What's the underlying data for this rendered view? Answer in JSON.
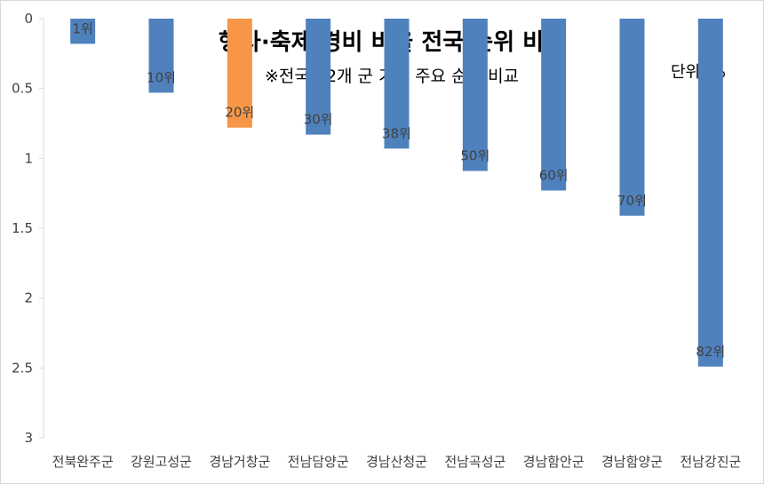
{
  "chart_data": {
    "type": "bar",
    "title": "행사·축제 경비 비율 전국 순위 비교",
    "subtitle": "※전국 82개 군 기준 주요 순위 비교",
    "unit_label": "단위: %",
    "categories": [
      "전북완주군",
      "강원고성군",
      "경남거창군",
      "전남담양군",
      "경남산청군",
      "전남곡성군",
      "경남함안군",
      "경남함양군",
      "전남강진군"
    ],
    "values": [
      0.18,
      0.53,
      0.78,
      0.83,
      0.93,
      1.09,
      1.23,
      1.41,
      2.49
    ],
    "data_labels": [
      "1위",
      "10위",
      "20위",
      "30위",
      "38위",
      "50위",
      "60위",
      "70위",
      "82위"
    ],
    "y_axis": {
      "min": 0,
      "max": 3,
      "reversed": true,
      "ticks": [
        "0",
        "0.5",
        "1",
        "1.5",
        "2",
        "2.5",
        "3"
      ]
    },
    "colors": {
      "default": "#4f81bd",
      "highlight": "#f79646"
    },
    "highlight_index": 2,
    "grid": false,
    "legend": "none"
  }
}
